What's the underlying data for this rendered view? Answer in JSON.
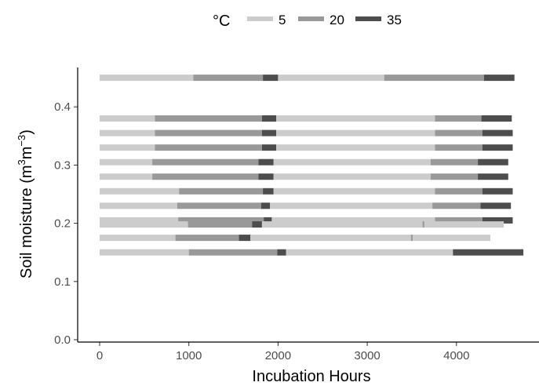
{
  "chart_data": {
    "type": "bar",
    "orientation": "horizontal",
    "stacking": "sequential-segments",
    "title": "",
    "xlabel": "Incubation Hours",
    "ylabel": "Soil moisture (m",
    "ylabel_unit_sup1": "3",
    "ylabel_unit_mid": "m",
    "ylabel_unit_sup2": "−3",
    "ylabel_unit_close": ")",
    "xlim": [
      -200,
      4800
    ],
    "ylim": [
      -0.003,
      0.48
    ],
    "xticks": [
      0,
      1000,
      2000,
      3000,
      4000
    ],
    "xtick_labels": [
      "0",
      "1000",
      "2000",
      "3000",
      "4000"
    ],
    "yticks": [
      0.0,
      0.1,
      0.2,
      0.3,
      0.4
    ],
    "ytick_labels": [
      "0.0",
      "0.1",
      "0.2",
      "0.3",
      "0.4"
    ],
    "grid": false,
    "legend": {
      "title": "°C",
      "placement": "top",
      "entries": [
        {
          "label": "5",
          "color": "#cccccc"
        },
        {
          "label": "20",
          "color": "#999999"
        },
        {
          "label": "35",
          "color": "#4d4d4d"
        }
      ]
    },
    "series_colors": {
      "5": "#cccccc",
      "20": "#999999",
      "35": "#4d4d4d"
    },
    "rows": [
      {
        "y": 0.45,
        "segments": [
          [
            0,
            1050,
            "5"
          ],
          [
            1050,
            1830,
            "20"
          ],
          [
            1830,
            2000,
            "35"
          ],
          [
            2000,
            3190,
            "5"
          ],
          [
            3190,
            4310,
            "20"
          ],
          [
            4310,
            4650,
            "35"
          ]
        ]
      },
      {
        "y": 0.38,
        "segments": [
          [
            0,
            620,
            "5"
          ],
          [
            620,
            1820,
            "20"
          ],
          [
            1820,
            1980,
            "35"
          ],
          [
            1980,
            3760,
            "5"
          ],
          [
            3760,
            4280,
            "20"
          ],
          [
            4280,
            4620,
            "35"
          ]
        ]
      },
      {
        "y": 0.355,
        "segments": [
          [
            0,
            620,
            "5"
          ],
          [
            620,
            1820,
            "20"
          ],
          [
            1820,
            1980,
            "35"
          ],
          [
            1980,
            3760,
            "5"
          ],
          [
            3760,
            4290,
            "20"
          ],
          [
            4290,
            4630,
            "35"
          ]
        ]
      },
      {
        "y": 0.33,
        "segments": [
          [
            0,
            620,
            "5"
          ],
          [
            620,
            1820,
            "20"
          ],
          [
            1820,
            1980,
            "35"
          ],
          [
            1980,
            3760,
            "5"
          ],
          [
            3760,
            4290,
            "20"
          ],
          [
            4290,
            4630,
            "35"
          ]
        ]
      },
      {
        "y": 0.305,
        "segments": [
          [
            0,
            590,
            "5"
          ],
          [
            590,
            1780,
            "20"
          ],
          [
            1780,
            1950,
            "35"
          ],
          [
            1950,
            3710,
            "5"
          ],
          [
            3710,
            4240,
            "20"
          ],
          [
            4240,
            4580,
            "35"
          ]
        ]
      },
      {
        "y": 0.28,
        "segments": [
          [
            0,
            590,
            "5"
          ],
          [
            590,
            1780,
            "20"
          ],
          [
            1780,
            1950,
            "35"
          ],
          [
            1950,
            3710,
            "5"
          ],
          [
            3710,
            4240,
            "20"
          ],
          [
            4240,
            4580,
            "35"
          ]
        ]
      },
      {
        "y": 0.255,
        "segments": [
          [
            0,
            890,
            "5"
          ],
          [
            890,
            1830,
            "20"
          ],
          [
            1830,
            1950,
            "35"
          ],
          [
            1950,
            3760,
            "5"
          ],
          [
            3760,
            4290,
            "20"
          ],
          [
            4290,
            4630,
            "35"
          ]
        ]
      },
      {
        "y": 0.23,
        "segments": [
          [
            0,
            870,
            "5"
          ],
          [
            870,
            1810,
            "20"
          ],
          [
            1810,
            1910,
            "35"
          ],
          [
            1910,
            3730,
            "5"
          ],
          [
            3730,
            4270,
            "20"
          ],
          [
            4270,
            4610,
            "35"
          ]
        ]
      },
      {
        "y": 0.205,
        "segments": [
          [
            0,
            880,
            "5"
          ],
          [
            880,
            1840,
            "20"
          ],
          [
            1840,
            1930,
            "35"
          ],
          [
            1930,
            3760,
            "5"
          ],
          [
            3760,
            4290,
            "20"
          ],
          [
            4290,
            4630,
            "35"
          ]
        ]
      },
      {
        "y": 0.198,
        "segments": [
          [
            0,
            990,
            "5"
          ],
          [
            990,
            1710,
            "20"
          ],
          [
            1710,
            1820,
            "35"
          ],
          [
            1820,
            3620,
            "5"
          ],
          [
            3620,
            3640,
            "20"
          ],
          [
            3640,
            4530,
            "5"
          ]
        ]
      },
      {
        "y": 0.175,
        "segments": [
          [
            0,
            850,
            "5"
          ],
          [
            850,
            1560,
            "20"
          ],
          [
            1560,
            1690,
            "35"
          ],
          [
            1690,
            3490,
            "5"
          ],
          [
            3490,
            3510,
            "20"
          ],
          [
            3510,
            4380,
            "5"
          ]
        ]
      },
      {
        "y": 0.15,
        "segments": [
          [
            0,
            1000,
            "5"
          ],
          [
            1000,
            1990,
            "20"
          ],
          [
            1990,
            2090,
            "35"
          ],
          [
            2090,
            3960,
            "5"
          ],
          [
            3960,
            4750,
            "35"
          ]
        ]
      }
    ]
  }
}
